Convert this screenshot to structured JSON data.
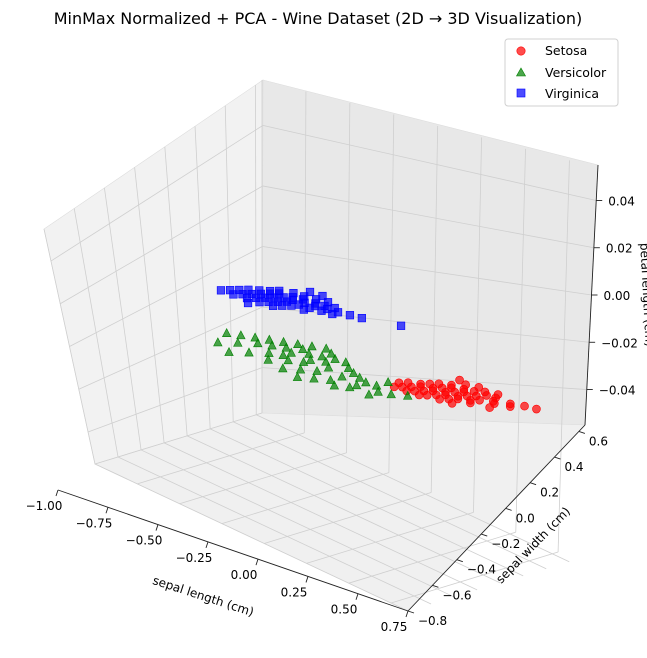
{
  "chart_data": {
    "type": "scatter",
    "projection": "3d",
    "title": "MinMax Normalized + PCA - Wine Dataset (2D → 3D Visualization)",
    "xlabel": "sepal length (cm)",
    "ylabel": "sepal width (cm)",
    "zlabel": "petal length (cm)",
    "xlim": [
      -1.0,
      0.85
    ],
    "ylim": [
      -0.8,
      0.65
    ],
    "zlim": [
      -0.055,
      0.055
    ],
    "xticks": [
      "−1.00",
      "−0.75",
      "−0.50",
      "−0.25",
      "0.00",
      "0.25",
      "0.50",
      "0.75"
    ],
    "yticks": [
      "−0.8",
      "−0.6",
      "−0.4",
      "−0.2",
      "0.0",
      "0.2",
      "0.4",
      "0.6"
    ],
    "zticks": [
      "−0.04",
      "−0.02",
      "0.00",
      "0.02",
      "0.04"
    ],
    "grid": true,
    "legend_position": "top-right",
    "series": [
      {
        "name": "Setosa",
        "marker": "circle",
        "color": "#ff0000",
        "points": [
          [
            0.4,
            0.3
          ],
          [
            0.45,
            0.28
          ],
          [
            0.5,
            0.32
          ],
          [
            0.55,
            0.3
          ],
          [
            0.6,
            0.34
          ],
          [
            0.42,
            0.2
          ],
          [
            0.48,
            0.22
          ],
          [
            0.52,
            0.25
          ],
          [
            0.58,
            0.27
          ],
          [
            0.62,
            0.29
          ],
          [
            0.38,
            0.15
          ],
          [
            0.44,
            0.17
          ],
          [
            0.5,
            0.19
          ],
          [
            0.56,
            0.21
          ],
          [
            0.64,
            0.24
          ],
          [
            0.7,
            0.3
          ],
          [
            0.75,
            0.35
          ],
          [
            0.8,
            0.38
          ],
          [
            0.36,
            0.1
          ],
          [
            0.42,
            0.12
          ],
          [
            0.48,
            0.14
          ],
          [
            0.54,
            0.16
          ],
          [
            0.6,
            0.18
          ],
          [
            0.66,
            0.22
          ],
          [
            0.72,
            0.27
          ],
          [
            0.34,
            0.05
          ],
          [
            0.4,
            0.07
          ],
          [
            0.46,
            0.09
          ],
          [
            0.52,
            0.11
          ],
          [
            0.58,
            0.13
          ],
          [
            0.3,
            0.0
          ],
          [
            0.36,
            0.02
          ],
          [
            0.42,
            0.04
          ],
          [
            0.48,
            0.06
          ],
          [
            0.54,
            0.08
          ],
          [
            0.28,
            -0.05
          ],
          [
            0.34,
            -0.03
          ],
          [
            0.4,
            -0.01
          ],
          [
            0.46,
            0.01
          ],
          [
            0.52,
            0.03
          ],
          [
            0.32,
            -0.08
          ],
          [
            0.38,
            -0.06
          ],
          [
            0.44,
            -0.04
          ],
          [
            0.5,
            -0.02
          ],
          [
            0.56,
            0.0
          ],
          [
            0.3,
            -0.12
          ],
          [
            0.36,
            -0.1
          ],
          [
            0.42,
            -0.08
          ],
          [
            0.6,
            0.1
          ],
          [
            0.68,
            0.15
          ]
        ]
      },
      {
        "name": "Versicolor",
        "marker": "triangle",
        "color": "#008000",
        "points": [
          [
            -0.2,
            -0.1
          ],
          [
            -0.15,
            -0.05
          ],
          [
            -0.1,
            -0.08
          ],
          [
            -0.05,
            -0.12
          ],
          [
            0.0,
            -0.1
          ],
          [
            -0.25,
            -0.15
          ],
          [
            -0.2,
            -0.18
          ],
          [
            -0.15,
            -0.2
          ],
          [
            -0.1,
            -0.16
          ],
          [
            -0.05,
            -0.2
          ],
          [
            0.05,
            -0.15
          ],
          [
            0.1,
            -0.18
          ],
          [
            0.15,
            -0.2
          ],
          [
            0.2,
            -0.22
          ],
          [
            0.25,
            -0.2
          ],
          [
            -0.3,
            -0.2
          ],
          [
            -0.25,
            -0.25
          ],
          [
            -0.2,
            -0.28
          ],
          [
            -0.1,
            -0.26
          ],
          [
            0.0,
            -0.25
          ],
          [
            0.1,
            -0.28
          ],
          [
            0.2,
            -0.3
          ],
          [
            0.3,
            -0.26
          ],
          [
            0.35,
            -0.22
          ],
          [
            -0.35,
            -0.25
          ],
          [
            -0.3,
            -0.3
          ],
          [
            -0.2,
            -0.35
          ],
          [
            -0.1,
            -0.32
          ],
          [
            0.0,
            -0.35
          ],
          [
            0.1,
            -0.38
          ],
          [
            0.2,
            -0.36
          ],
          [
            0.3,
            -0.34
          ],
          [
            -0.4,
            -0.3
          ],
          [
            -0.35,
            -0.35
          ],
          [
            -0.25,
            -0.4
          ],
          [
            -0.15,
            -0.38
          ],
          [
            -0.05,
            -0.42
          ],
          [
            0.05,
            -0.45
          ],
          [
            0.15,
            -0.42
          ],
          [
            -0.45,
            -0.35
          ],
          [
            -0.4,
            -0.45
          ],
          [
            -0.3,
            -0.5
          ],
          [
            -0.2,
            -0.48
          ],
          [
            -0.1,
            -0.5
          ],
          [
            0.0,
            -0.52
          ],
          [
            0.25,
            -0.1
          ],
          [
            -0.5,
            -0.4
          ],
          [
            -0.45,
            -0.55
          ],
          [
            0.4,
            -0.15
          ],
          [
            -0.35,
            -0.6
          ]
        ]
      },
      {
        "name": "Virginica",
        "marker": "square",
        "color": "#0000ff",
        "points": [
          [
            -0.7,
            0.35
          ],
          [
            -0.65,
            0.4
          ],
          [
            -0.6,
            0.42
          ],
          [
            -0.55,
            0.45
          ],
          [
            -0.5,
            0.48
          ],
          [
            -0.72,
            0.3
          ],
          [
            -0.68,
            0.32
          ],
          [
            -0.62,
            0.35
          ],
          [
            -0.58,
            0.38
          ],
          [
            -0.52,
            0.4
          ],
          [
            -0.48,
            0.42
          ],
          [
            -0.44,
            0.45
          ],
          [
            -0.75,
            0.25
          ],
          [
            -0.7,
            0.27
          ],
          [
            -0.64,
            0.3
          ],
          [
            -0.6,
            0.32
          ],
          [
            -0.55,
            0.35
          ],
          [
            -0.5,
            0.37
          ],
          [
            -0.45,
            0.4
          ],
          [
            -0.4,
            0.42
          ],
          [
            -0.35,
            0.45
          ],
          [
            -0.78,
            0.2
          ],
          [
            -0.72,
            0.22
          ],
          [
            -0.66,
            0.25
          ],
          [
            -0.6,
            0.27
          ],
          [
            -0.55,
            0.3
          ],
          [
            -0.5,
            0.32
          ],
          [
            -0.45,
            0.35
          ],
          [
            -0.4,
            0.37
          ],
          [
            -0.8,
            0.15
          ],
          [
            -0.74,
            0.17
          ],
          [
            -0.68,
            0.2
          ],
          [
            -0.62,
            0.22
          ],
          [
            -0.56,
            0.25
          ],
          [
            -0.5,
            0.27
          ],
          [
            -0.82,
            0.1
          ],
          [
            -0.76,
            0.12
          ],
          [
            -0.7,
            0.15
          ],
          [
            -0.64,
            0.17
          ],
          [
            -0.58,
            0.2
          ],
          [
            -0.84,
            0.05
          ],
          [
            -0.78,
            0.07
          ],
          [
            -0.72,
            0.1
          ],
          [
            -0.66,
            0.12
          ],
          [
            -0.6,
            0.15
          ],
          [
            -0.62,
            0.5
          ],
          [
            -0.56,
            0.52
          ],
          [
            -0.3,
            0.48
          ],
          [
            -0.15,
            0.6
          ],
          [
            -0.68,
            0.05
          ]
        ]
      }
    ]
  }
}
